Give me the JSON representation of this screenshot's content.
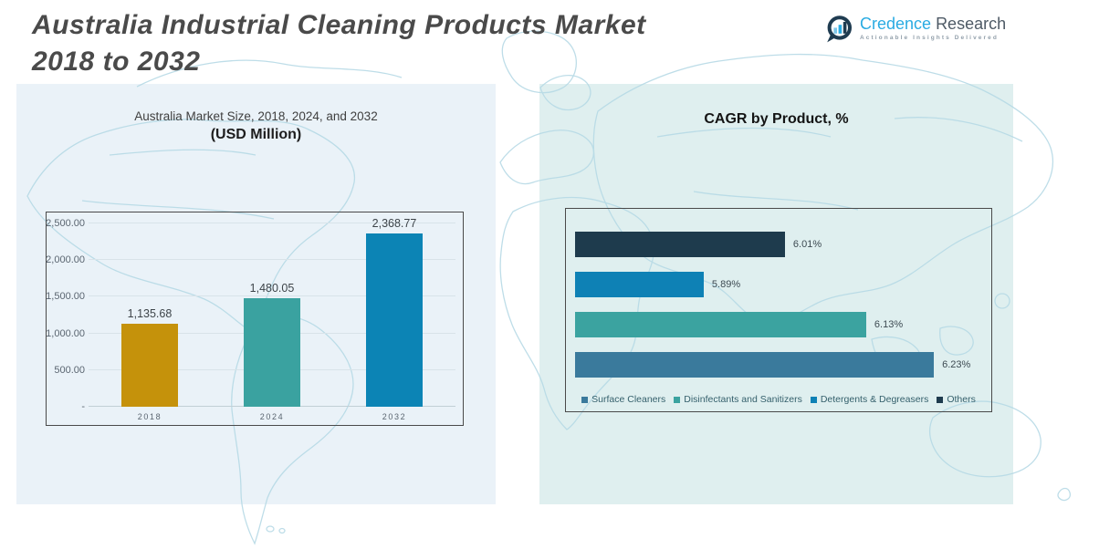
{
  "header": {
    "title_line1": "Australia Industrial Cleaning Products Market",
    "title_line2": "2018 to 2032"
  },
  "logo": {
    "brand_primary": "Credence",
    "brand_secondary": "Research",
    "tagline": "Actionable Insights Delivered"
  },
  "colors": {
    "panel_left": "#EAF2F8",
    "panel_right": "#DFEFEF",
    "map_stroke": "#B7DAE6",
    "gold": "#C5920B",
    "teal": "#3AA2A0",
    "blue": "#0C84B5",
    "navy": "#1E3B4D",
    "steel_blue": "#3A7A9C",
    "logo_cyan": "#29ABE2",
    "logo_slate": "#1F3C51"
  },
  "chart_data": [
    {
      "type": "bar",
      "title": "Australia Market Size, 2018, 2024, and 2032",
      "subtitle": "(USD Million)",
      "categories": [
        "2018",
        "2024",
        "2032"
      ],
      "values": [
        1135.68,
        1480.05,
        2368.77
      ],
      "value_labels": [
        "1,135.68",
        "1,480.05",
        "2,368.77"
      ],
      "bar_colors": [
        "#C5920B",
        "#3AA2A0",
        "#0C84B5"
      ],
      "xlabel": "",
      "ylabel": "",
      "ylim": [
        0,
        2500
      ],
      "yticks": [
        2500,
        2000,
        1500,
        1000,
        500,
        0
      ],
      "ytick_labels": [
        "2,500.00",
        "2,000.00",
        "1,500.00",
        "1,000.00",
        "500.00",
        "-"
      ],
      "grid": true,
      "legend_position": "none"
    },
    {
      "type": "bar-horizontal",
      "title": "CAGR by Product, %",
      "categories": [
        "Others",
        "Detergents & Degreasers",
        "Disinfectants and Sanitizers",
        "Surface Cleaners"
      ],
      "values": [
        6.01,
        5.89,
        6.13,
        6.23
      ],
      "value_labels": [
        "6.01%",
        "5.89%",
        "6.13%",
        "6.23%"
      ],
      "bar_colors": [
        "#1E3B4D",
        "#0E81B5",
        "#3BA3A0",
        "#3A7A9C"
      ],
      "xlabel": "",
      "ylabel": "",
      "xlim": [
        5.7,
        6.3
      ],
      "grid": false,
      "legend_position": "bottom",
      "legend": [
        {
          "label": "Surface Cleaners",
          "color": "#3A7A9C"
        },
        {
          "label": "Disinfectants and Sanitizers",
          "color": "#3BA3A0"
        },
        {
          "label": "Detergents & Degreasers",
          "color": "#0E81B5"
        },
        {
          "label": "Others",
          "color": "#1E3B4D"
        }
      ]
    }
  ]
}
